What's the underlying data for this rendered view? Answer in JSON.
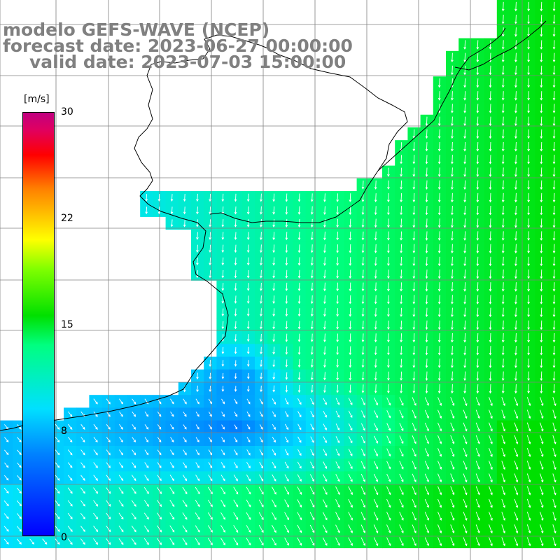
{
  "title": {
    "line1": "modelo GEFS-WAVE (NCEP)",
    "line2": "forecast date: 2023-06-27 00:00:00",
    "line3": "valid date: 2023-07-03 15:00:00"
  },
  "colorbar": {
    "unit": "[m/s]",
    "ticks": [
      "30",
      "22",
      "15",
      "8",
      "0"
    ],
    "tick_values": [
      30,
      22,
      15,
      8,
      0
    ],
    "range": [
      0,
      30
    ]
  },
  "map": {
    "variable": "wind speed",
    "arrow_color": "#ffffff",
    "coastline_color": "#000000",
    "grid_color": "#808080",
    "land_color": "#ffffff",
    "colors": {
      "calm": "#0000ff",
      "low": "#0080ff",
      "mid": "#00e0ff",
      "moderate": "#00ff80",
      "strong": "#00e000"
    }
  }
}
